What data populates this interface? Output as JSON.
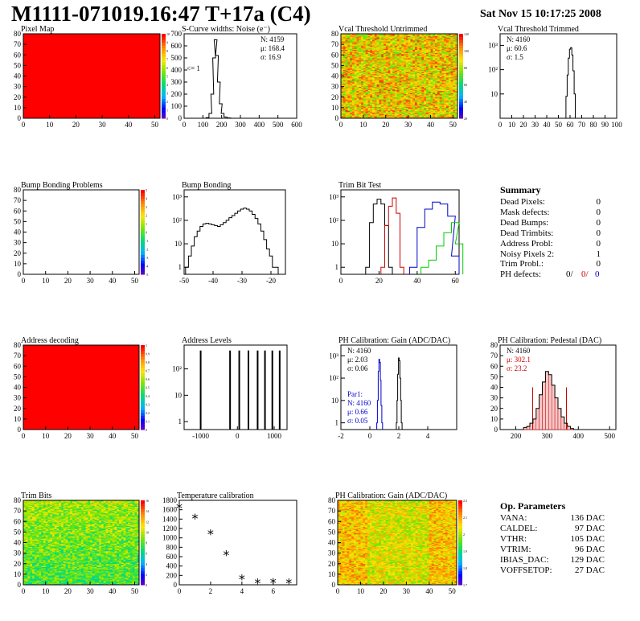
{
  "header": {
    "title": "M1111-071019.16:47 T+17a (C4)",
    "timestamp": "Sat Nov 15 10:17:25 2008"
  },
  "panels": {
    "pixel_map": {
      "title": "Pixel Map"
    },
    "scurve": {
      "title": "S-Curve widths: Noise (e⁻)",
      "under": "<= 1",
      "stats": [
        "N: 4159",
        "μ: 168.4",
        "σ: 16.9"
      ]
    },
    "vcal_untrimmed": {
      "title": "Vcal Threshold Untrimmed"
    },
    "vcal_trimmed": {
      "title": "Vcal Threshold Trimmed",
      "stats": [
        "N: 4160",
        "μ: 60.6",
        "σ: 1.5"
      ]
    },
    "bump_problems": {
      "title": "Bump Bonding Problems"
    },
    "bump_bonding": {
      "title": "Bump Bonding"
    },
    "trim_bit_test": {
      "title": "Trim Bit Test"
    },
    "address_decoding": {
      "title": "Address decoding"
    },
    "address_levels": {
      "title": "Address Levels"
    },
    "ph_gain": {
      "title": "PH Calibration: Gain (ADC/DAC)",
      "stats": [
        "N: 4160",
        "μ: 2.03",
        "σ: 0.06"
      ],
      "par_stats": [
        "Par1:",
        "N: 4160",
        "μ: 0.66",
        "σ: 0.05"
      ]
    },
    "ph_pedestal": {
      "title": "PH Calibration: Pedestal (DAC)",
      "stats": [
        "N: 4160",
        "μ: 302.1",
        "σ: 23.2"
      ]
    },
    "trim_bits": {
      "title": "Trim Bits"
    },
    "temperature": {
      "title": "Temperature calibration"
    },
    "ph_gain_map": {
      "title": "PH Calibration: Gain (ADC/DAC)"
    }
  },
  "summary": {
    "title": "Summary",
    "rows": [
      {
        "label": "Dead Pixels:",
        "value": "0"
      },
      {
        "label": "Mask defects:",
        "value": "0"
      },
      {
        "label": "Dead Bumps:",
        "value": "0"
      },
      {
        "label": "Dead Trimbits:",
        "value": "0"
      },
      {
        "label": "Address Probl:",
        "value": "0"
      },
      {
        "label": "Noisy Pixels 2:",
        "value": "1"
      },
      {
        "label": "Trim Probl.:",
        "value": "0"
      }
    ],
    "ph_defects": {
      "label": "PH defects:",
      "values": [
        "0/",
        "0/",
        "0"
      ],
      "colors": [
        "#000000",
        "#cc0000",
        "#0000cc"
      ]
    }
  },
  "op_parameters": {
    "title": "Op. Parameters",
    "rows": [
      {
        "label": "VANA:",
        "value": "136 DAC"
      },
      {
        "label": "CALDEL:",
        "value": "97 DAC"
      },
      {
        "label": "VTHR:",
        "value": "105 DAC"
      },
      {
        "label": "VTRIM:",
        "value": "96 DAC"
      },
      {
        "label": "IBIAS_DAC:",
        "value": "129 DAC"
      },
      {
        "label": "VOFFSETOP:",
        "value": "27 DAC"
      }
    ]
  },
  "chart_data": [
    {
      "id": "pixel_map",
      "type": "heatmap",
      "xlim": [
        0,
        52
      ],
      "ylim": [
        0,
        80
      ],
      "xticks": [
        0,
        10,
        20,
        30,
        40,
        50
      ],
      "yticks": [
        0,
        10,
        20,
        30,
        40,
        50,
        60,
        70,
        80
      ],
      "fill": "uniform-max",
      "zticks": [
        "0",
        "1",
        "2",
        "3",
        "4",
        "5",
        "6",
        "7",
        "8",
        "9",
        "10"
      ]
    },
    {
      "id": "scurve",
      "type": "bar",
      "xlim": [
        0,
        600
      ],
      "ylim": [
        0,
        700
      ],
      "xticks": [
        0,
        100,
        200,
        300,
        400,
        500,
        600
      ],
      "yticks": [
        0,
        100,
        200,
        300,
        400,
        500,
        600,
        700
      ],
      "x": [
        110,
        125,
        140,
        150,
        160,
        168,
        175,
        185,
        195,
        205,
        220,
        240,
        260
      ],
      "values": [
        0,
        5,
        40,
        200,
        500,
        650,
        520,
        300,
        120,
        40,
        10,
        3,
        0
      ]
    },
    {
      "id": "vcal_untrimmed",
      "type": "heatmap",
      "xlim": [
        0,
        52
      ],
      "ylim": [
        0,
        80
      ],
      "xticks": [
        0,
        10,
        20,
        30,
        40,
        50
      ],
      "yticks": [
        0,
        10,
        20,
        30,
        40,
        50,
        60,
        70,
        80
      ],
      "fill": "noise-high",
      "zticks": [
        "20",
        "40",
        "60",
        "80",
        "100",
        "120"
      ]
    },
    {
      "id": "vcal_trimmed",
      "type": "bar",
      "xlim": [
        0,
        100
      ],
      "ylog": true,
      "ylim": [
        1,
        3000
      ],
      "xticks": [
        0,
        10,
        20,
        30,
        40,
        50,
        60,
        70,
        80,
        90,
        100
      ],
      "yticklabels": [
        [
          10,
          "10"
        ],
        [
          100,
          "10²"
        ],
        [
          1000,
          "10³"
        ]
      ],
      "x": [
        56,
        57,
        58,
        59,
        60,
        61,
        62,
        63,
        64,
        65
      ],
      "values": [
        1,
        8,
        60,
        300,
        700,
        800,
        400,
        90,
        10,
        1
      ]
    },
    {
      "id": "bump_problems",
      "type": "heatmap",
      "xlim": [
        0,
        52
      ],
      "ylim": [
        0,
        80
      ],
      "xticks": [
        0,
        10,
        20,
        30,
        40,
        50
      ],
      "yticks": [
        0,
        10,
        20,
        30,
        40,
        50,
        60,
        70,
        80
      ],
      "fill": "empty",
      "zticks": [
        "-5",
        "-4",
        "-3",
        "-2",
        "-1",
        "0",
        "1",
        "2",
        "3",
        "4",
        "5"
      ]
    },
    {
      "id": "bump_bonding",
      "type": "bar",
      "xlim": [
        -50,
        -15
      ],
      "ylog": true,
      "ylim": [
        0.5,
        2000
      ],
      "xticks": [
        -50,
        -40,
        -30,
        -20
      ],
      "yticklabels": [
        [
          1,
          "1"
        ],
        [
          10,
          "10"
        ],
        [
          100,
          "10²"
        ],
        [
          1000,
          "10³"
        ]
      ],
      "x": [
        -49,
        -48,
        -47,
        -46,
        -45,
        -44,
        -43,
        -42,
        -41,
        -40,
        -39,
        -38,
        -37,
        -36,
        -35,
        -34,
        -33,
        -32,
        -31,
        -30,
        -29,
        -28,
        -27,
        -26,
        -25,
        -24,
        -23,
        -22,
        -21,
        -20,
        -19,
        -18
      ],
      "values": [
        1,
        3,
        8,
        20,
        35,
        55,
        70,
        75,
        70,
        65,
        60,
        55,
        65,
        80,
        100,
        130,
        160,
        200,
        250,
        300,
        330,
        300,
        250,
        180,
        120,
        70,
        35,
        15,
        6,
        3,
        1,
        1
      ]
    },
    {
      "id": "trim_bit_test",
      "type": "line",
      "xlim": [
        0,
        62
      ],
      "ylog": true,
      "ylim": [
        0.5,
        2000
      ],
      "xticks": [
        0,
        20,
        40,
        60
      ],
      "yticklabels": [
        [
          1,
          "1"
        ],
        [
          10,
          "10"
        ],
        [
          100,
          "10²"
        ],
        [
          1000,
          "10³"
        ]
      ],
      "series": [
        {
          "color": "#000000",
          "x": [
            14,
            16,
            18,
            20,
            22,
            24,
            26
          ],
          "values": [
            1,
            80,
            500,
            800,
            500,
            60,
            1
          ]
        },
        {
          "color": "#cc0000",
          "x": [
            22,
            24,
            26,
            28,
            30,
            32
          ],
          "values": [
            1,
            60,
            400,
            900,
            200,
            1
          ]
        },
        {
          "color": "#0000cc",
          "x": [
            38,
            42,
            46,
            50,
            54,
            58,
            60
          ],
          "values": [
            1,
            50,
            300,
            600,
            500,
            150,
            3
          ]
        },
        {
          "color": "#00cc00",
          "x": [
            44,
            48,
            52,
            56,
            60,
            62
          ],
          "values": [
            1,
            2,
            8,
            30,
            80,
            10
          ]
        }
      ]
    },
    {
      "id": "address_decoding",
      "type": "heatmap",
      "xlim": [
        0,
        52
      ],
      "ylim": [
        0,
        80
      ],
      "xticks": [
        0,
        10,
        20,
        30,
        40,
        50
      ],
      "yticks": [
        0,
        10,
        20,
        30,
        40,
        50,
        60,
        70,
        80
      ],
      "fill": "uniform-max",
      "zticks": [
        "0",
        "0.1",
        "0.2",
        "0.3",
        "0.4",
        "0.5",
        "0.6",
        "0.7",
        "0.8",
        "0.9",
        "1"
      ]
    },
    {
      "id": "address_levels",
      "type": "bar",
      "xlim": [
        -1450,
        1350
      ],
      "ylog": true,
      "ylim": [
        0.5,
        800
      ],
      "xticks": [
        -1000,
        0,
        1000
      ],
      "yticklabels": [
        [
          1,
          "1"
        ],
        [
          10,
          "10"
        ],
        [
          100,
          "10²"
        ]
      ],
      "x": [
        -1000,
        -200,
        50,
        300,
        550,
        750,
        950,
        1150
      ],
      "values": [
        500,
        500,
        500,
        500,
        500,
        500,
        500,
        500
      ]
    },
    {
      "id": "ph_gain",
      "type": "bar",
      "xlim": [
        -2,
        6
      ],
      "ylog": true,
      "ylim": [
        0.5,
        3000
      ],
      "xticks": [
        -2,
        0,
        2,
        4
      ],
      "yticklabels": [
        [
          1,
          "1"
        ],
        [
          10,
          "10"
        ],
        [
          100,
          "10²"
        ],
        [
          1000,
          "10³"
        ]
      ],
      "series": [
        {
          "color": "#000000",
          "x": [
            1.85,
            1.9,
            1.95,
            2.0,
            2.05,
            2.1,
            2.15,
            2.2
          ],
          "values": [
            1,
            10,
            150,
            800,
            600,
            100,
            10,
            1
          ]
        },
        {
          "color": "#0000cc",
          "x": [
            0.5,
            0.55,
            0.6,
            0.65,
            0.7,
            0.75,
            0.8,
            0.85
          ],
          "values": [
            1,
            10,
            200,
            700,
            500,
            80,
            6,
            1
          ]
        }
      ]
    },
    {
      "id": "ph_pedestal",
      "type": "bar",
      "xlim": [
        150,
        520
      ],
      "ylim": [
        0,
        80
      ],
      "xticks": [
        200,
        300,
        400,
        500
      ],
      "yticks": [
        0,
        10,
        20,
        30,
        40,
        50,
        60,
        70,
        80
      ],
      "x": [
        230,
        240,
        250,
        260,
        270,
        280,
        290,
        300,
        310,
        320,
        330,
        340,
        350,
        360,
        370,
        380
      ],
      "values": [
        2,
        3,
        6,
        10,
        20,
        33,
        45,
        55,
        52,
        42,
        30,
        20,
        12,
        6,
        3,
        1
      ],
      "cut_lines": [
        254,
        362
      ]
    },
    {
      "id": "trim_bits",
      "type": "heatmap",
      "xlim": [
        0,
        52
      ],
      "ylim": [
        0,
        80
      ],
      "xticks": [
        0,
        10,
        20,
        30,
        40,
        50
      ],
      "yticks": [
        0,
        10,
        20,
        30,
        40,
        50,
        60,
        70,
        80
      ],
      "fill": "noise-mid",
      "zticks": [
        "0",
        "2",
        "4",
        "6",
        "8",
        "10",
        "12",
        "14",
        "16"
      ]
    },
    {
      "id": "temperature",
      "type": "scatter",
      "xlim": [
        0,
        7.5
      ],
      "ylim": [
        0,
        1800
      ],
      "xticks": [
        0,
        2,
        4,
        6
      ],
      "yticks": [
        0,
        200,
        400,
        600,
        800,
        1000,
        1200,
        1400,
        1600,
        1800
      ],
      "x": [
        0,
        1,
        2,
        3,
        4,
        5,
        6,
        7
      ],
      "values": [
        1650,
        1420,
        1090,
        640,
        130,
        40,
        50,
        40
      ]
    },
    {
      "id": "ph_gain_map",
      "type": "heatmap",
      "xlim": [
        0,
        52
      ],
      "ylim": [
        0,
        80
      ],
      "xticks": [
        0,
        10,
        20,
        30,
        40,
        50
      ],
      "yticks": [
        0,
        10,
        20,
        30,
        40,
        50,
        60,
        70,
        80
      ],
      "fill": "noise-gain",
      "zticks": [
        "1.7",
        "1.8",
        "1.9",
        "2",
        "2.1",
        "2.2"
      ]
    }
  ]
}
